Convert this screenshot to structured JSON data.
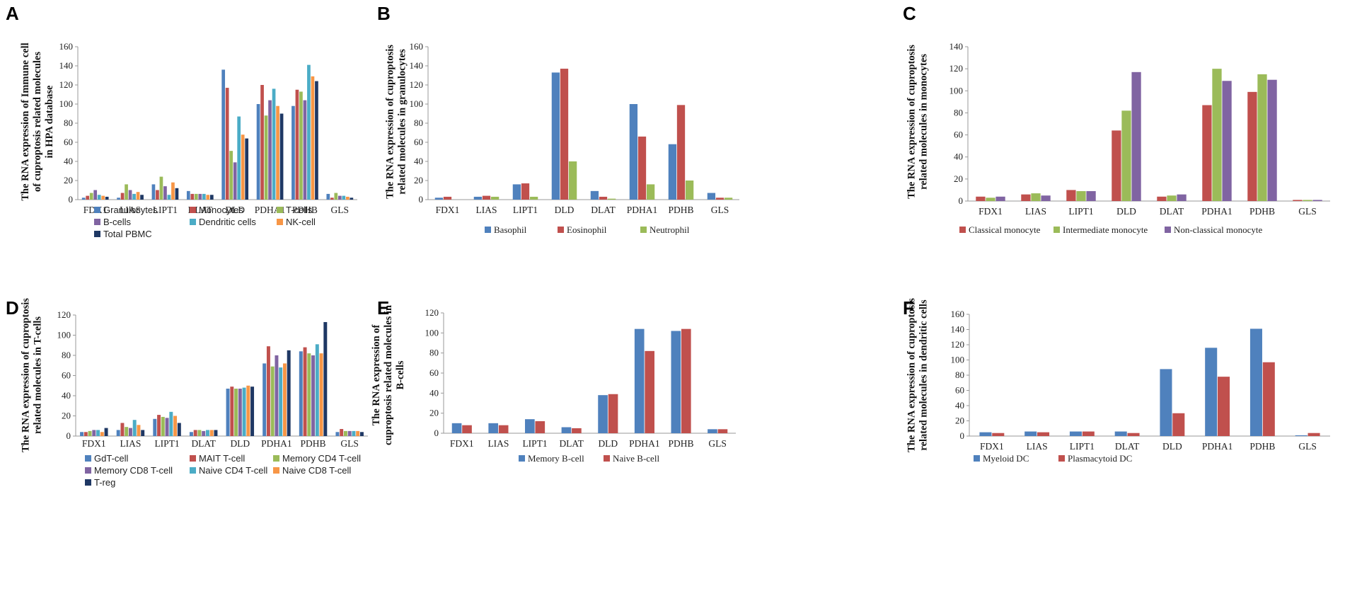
{
  "colors": {
    "blue": "#4f81bd",
    "red": "#c0504d",
    "green": "#9bbb59",
    "purple": "#8064a2",
    "cyan": "#4bacc6",
    "orange": "#f79646",
    "navy": "#1f3864",
    "axis": "#999999"
  },
  "chart_data": [
    {
      "id": "A",
      "panel_label": "A",
      "type": "bar",
      "ylabel_lines": [
        "The RNA expression of Immune cell",
        "of cuproptosis related molecules",
        "in HPA database"
      ],
      "ylim": [
        0,
        160
      ],
      "yticks": [
        "0",
        "20",
        "40",
        "60",
        "80",
        "100",
        "120",
        "140",
        "160"
      ],
      "categories": [
        "FDX1",
        "LIAS",
        "LIPT1",
        "DLAT",
        "DLD",
        "PDHA1",
        "PDHB",
        "GLS"
      ],
      "series": [
        {
          "name": "Granulocytes",
          "color_key": "blue",
          "values": [
            2,
            2,
            16,
            9,
            136,
            100,
            98,
            6
          ]
        },
        {
          "name": "Monocytes",
          "color_key": "red",
          "values": [
            4,
            7,
            10,
            6,
            117,
            120,
            115,
            2
          ]
        },
        {
          "name": "T-cells",
          "color_key": "green",
          "values": [
            7,
            16,
            24,
            6,
            51,
            88,
            113,
            7
          ]
        },
        {
          "name": "B-cells",
          "color_key": "purple",
          "values": [
            10,
            10,
            14,
            6,
            39,
            104,
            104,
            4
          ]
        },
        {
          "name": "Dendritic cells",
          "color_key": "cyan",
          "values": [
            5,
            6,
            5,
            6,
            87,
            116,
            141,
            4
          ]
        },
        {
          "name": "NK-cell",
          "color_key": "orange",
          "values": [
            4,
            8,
            18,
            5,
            68,
            98,
            129,
            3
          ]
        },
        {
          "name": "Total PBMC",
          "color_key": "navy",
          "values": [
            3,
            5,
            12,
            5,
            64,
            90,
            124,
            2
          ]
        }
      ]
    },
    {
      "id": "B",
      "panel_label": "B",
      "type": "bar",
      "ylabel_lines": [
        "The RNA expression of cuproptosis",
        "related molecules in granulocytes"
      ],
      "ylim": [
        0,
        160
      ],
      "yticks": [
        "0",
        "20",
        "40",
        "60",
        "80",
        "100",
        "120",
        "140",
        "160"
      ],
      "categories": [
        "FDX1",
        "LIAS",
        "LIPT1",
        "DLD",
        "DLAT",
        "PDHA1",
        "PDHB",
        "GLS"
      ],
      "series": [
        {
          "name": "Basophil",
          "color_key": "blue",
          "values": [
            2,
            3,
            16,
            133,
            9,
            100,
            58,
            7
          ]
        },
        {
          "name": "Eosinophil",
          "color_key": "red",
          "values": [
            3,
            4,
            17,
            137,
            3,
            66,
            99,
            2
          ]
        },
        {
          "name": "Neutrophil",
          "color_key": "green",
          "values": [
            0,
            3,
            3,
            40,
            1,
            16,
            20,
            2
          ]
        }
      ]
    },
    {
      "id": "C",
      "panel_label": "C",
      "type": "bar",
      "ylabel_lines": [
        "The RNA expression of cuproptosis",
        "related molecules in monocytes"
      ],
      "ylim": [
        0,
        140
      ],
      "yticks": [
        "0",
        "20",
        "40",
        "60",
        "80",
        "100",
        "120",
        "140"
      ],
      "categories": [
        "FDX1",
        "LIAS",
        "LIPT1",
        "DLD",
        "DLAT",
        "PDHA1",
        "PDHB",
        "GLS"
      ],
      "series": [
        {
          "name": "Classical monocyte",
          "color_key": "red",
          "values": [
            4,
            6,
            10,
            64,
            4,
            87,
            99,
            1
          ]
        },
        {
          "name": "Intermediate monocyte",
          "color_key": "green",
          "values": [
            3,
            7,
            9,
            82,
            5,
            120,
            115,
            1
          ]
        },
        {
          "name": "Non-classical monocyte",
          "color_key": "purple",
          "values": [
            4,
            5,
            9,
            117,
            6,
            109,
            110,
            1
          ]
        }
      ]
    },
    {
      "id": "D",
      "panel_label": "D",
      "type": "bar",
      "ylabel_lines": [
        "The RNA expression of cuproptosis",
        "related molecules in T-cells"
      ],
      "ylim": [
        0,
        120
      ],
      "yticks": [
        "0",
        "20",
        "40",
        "60",
        "80",
        "100",
        "120"
      ],
      "categories": [
        "FDX1",
        "LIAS",
        "LIPT1",
        "DLAT",
        "DLD",
        "PDHA1",
        "PDHB",
        "GLS"
      ],
      "series": [
        {
          "name": "GdT-cell",
          "color_key": "blue",
          "values": [
            4,
            6,
            17,
            4,
            47,
            72,
            84,
            4
          ]
        },
        {
          "name": "MAIT T-cell",
          "color_key": "red",
          "values": [
            4,
            13,
            21,
            6,
            49,
            89,
            88,
            7
          ]
        },
        {
          "name": "Memory CD4 T-cell",
          "color_key": "green",
          "values": [
            5,
            9,
            19,
            6,
            47,
            69,
            82,
            5
          ]
        },
        {
          "name": "Memory CD8 T-cell",
          "color_key": "purple",
          "values": [
            6,
            8,
            18,
            5,
            47,
            80,
            80,
            5
          ]
        },
        {
          "name": "Naive CD4 T-cell",
          "color_key": "cyan",
          "values": [
            6,
            16,
            24,
            6,
            48,
            68,
            91,
            5
          ]
        },
        {
          "name": "Naive CD8 T-cell",
          "color_key": "orange",
          "values": [
            4,
            11,
            20,
            6,
            50,
            72,
            82,
            5
          ]
        },
        {
          "name": "T-reg",
          "color_key": "navy",
          "values": [
            8,
            6,
            13,
            6,
            49,
            85,
            113,
            4
          ]
        }
      ]
    },
    {
      "id": "E",
      "panel_label": "E",
      "type": "bar",
      "ylabel_lines": [
        "The RNA expression of",
        "cuproptosis related molecules in",
        "B-cells"
      ],
      "ylim": [
        0,
        120
      ],
      "yticks": [
        "0",
        "20",
        "40",
        "60",
        "80",
        "100",
        "120"
      ],
      "categories": [
        "FDX1",
        "LIAS",
        "LIPT1",
        "DLAT",
        "DLD",
        "PDHA1",
        "PDHB",
        "GLS"
      ],
      "series": [
        {
          "name": "Memory B-cell",
          "color_key": "blue",
          "values": [
            10,
            10,
            14,
            6,
            38,
            104,
            102,
            4
          ]
        },
        {
          "name": "Naive B-cell",
          "color_key": "red",
          "values": [
            8,
            8,
            12,
            5,
            39,
            82,
            104,
            4
          ]
        }
      ]
    },
    {
      "id": "F",
      "panel_label": "F",
      "type": "bar",
      "ylabel_lines": [
        "The RNA expression of cuproptosis",
        "related molecules in dendritic cells"
      ],
      "ylim": [
        0,
        160
      ],
      "yticks": [
        "0",
        "20",
        "40",
        "60",
        "80",
        "100",
        "120",
        "140",
        "160"
      ],
      "categories": [
        "FDX1",
        "LIAS",
        "LIPT1",
        "DLAT",
        "DLD",
        "PDHA1",
        "PDHB",
        "GLS"
      ],
      "series": [
        {
          "name": "Myeloid DC",
          "color_key": "blue",
          "values": [
            5,
            6,
            6,
            6,
            88,
            116,
            141,
            1
          ]
        },
        {
          "name": "Plasmacytoid DC",
          "color_key": "red",
          "values": [
            4,
            5,
            6,
            4,
            30,
            78,
            97,
            4
          ]
        }
      ]
    }
  ]
}
